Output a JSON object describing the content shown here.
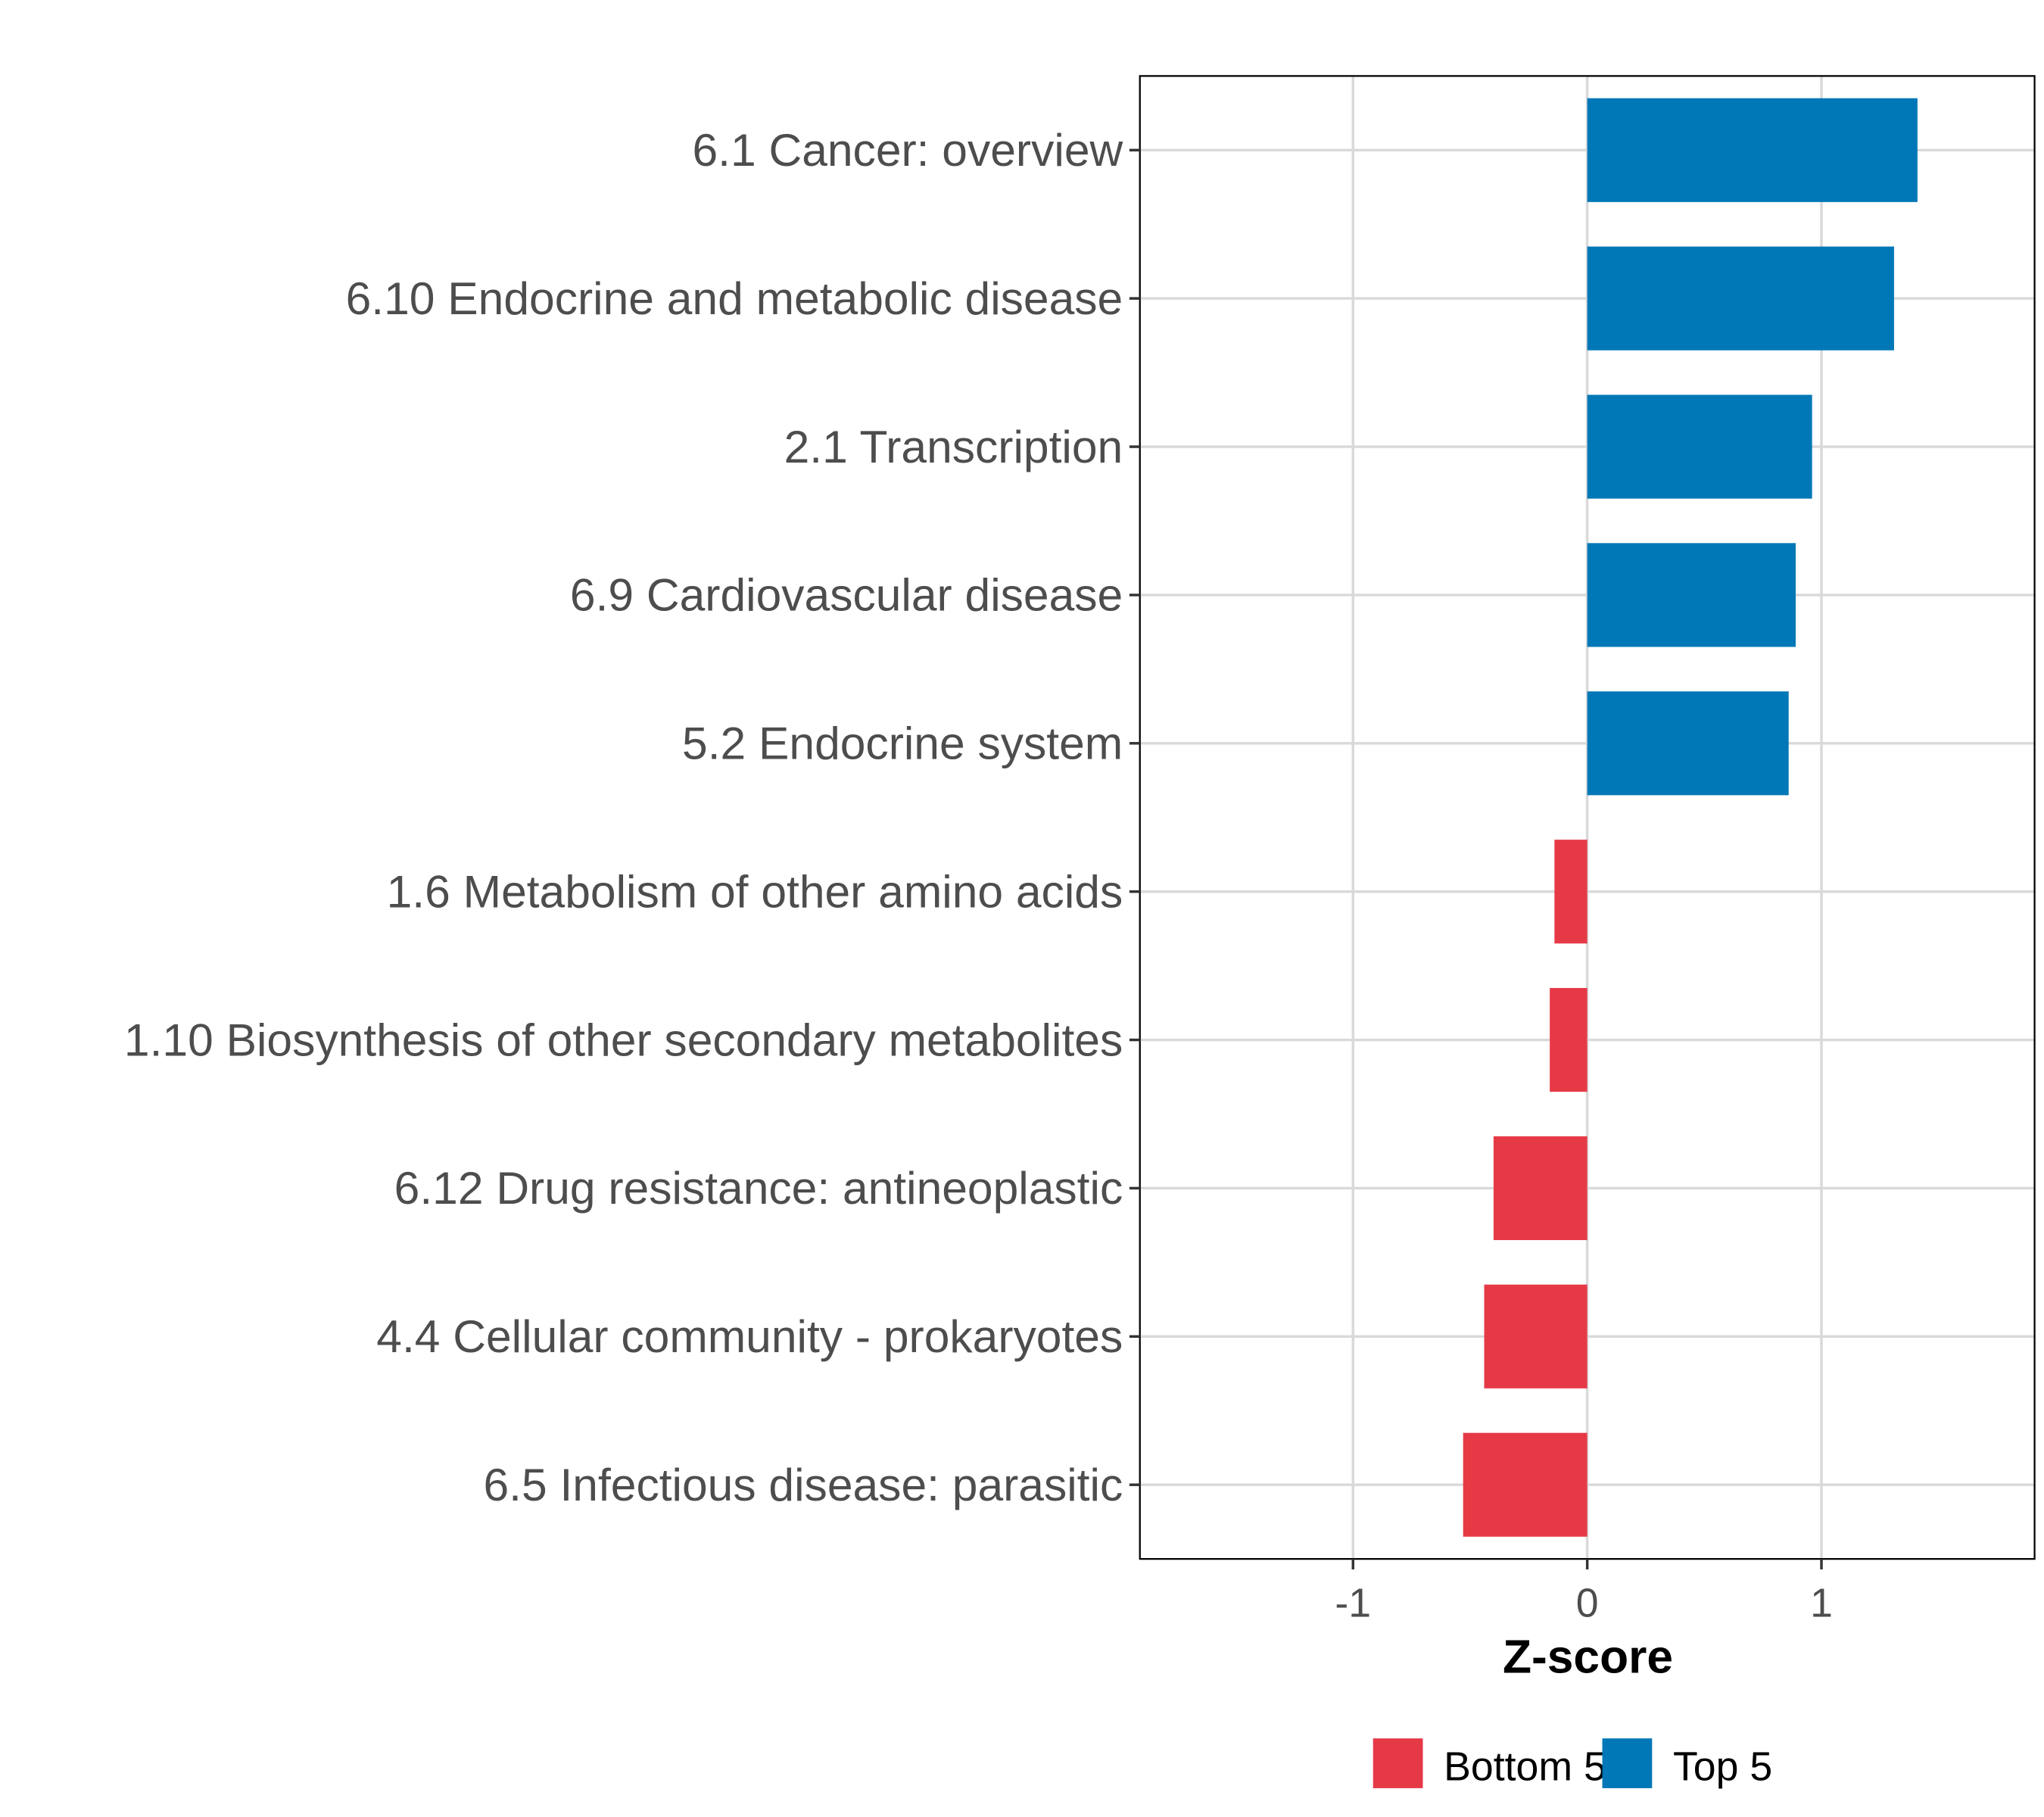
{
  "chart_data": {
    "type": "bar",
    "orientation": "horizontal",
    "title": "",
    "xlabel": "Z-score",
    "ylabel": "",
    "xlim": [
      -1.91,
      1.91
    ],
    "xticks": [
      -1,
      0,
      1
    ],
    "xtick_labels": [
      "-1",
      "0",
      "1"
    ],
    "grid": true,
    "legend_position": "bottom",
    "categories": [
      "6.1 Cancer: overview",
      "6.10 Endocrine and metabolic disease",
      "2.1 Transcription",
      "6.9 Cardiovascular disease",
      "5.2 Endocrine system",
      "1.6 Metabolism of other amino acids",
      "1.10 Biosynthesis of other secondary metabolites",
      "6.12 Drug resistance: antineoplastic",
      "4.4 Cellular community - prokaryotes",
      "6.5 Infectious disease: parasitic"
    ],
    "values": [
      1.41,
      1.31,
      0.96,
      0.89,
      0.86,
      -0.14,
      -0.16,
      -0.4,
      -0.44,
      -0.53
    ],
    "groups": [
      "Top 5",
      "Top 5",
      "Top 5",
      "Top 5",
      "Top 5",
      "Bottom 5",
      "Bottom 5",
      "Bottom 5",
      "Bottom 5",
      "Bottom 5"
    ],
    "legend": [
      {
        "name": "Bottom 5",
        "color": "#E63946"
      },
      {
        "name": "Top 5",
        "color": "#0077B6"
      }
    ]
  }
}
